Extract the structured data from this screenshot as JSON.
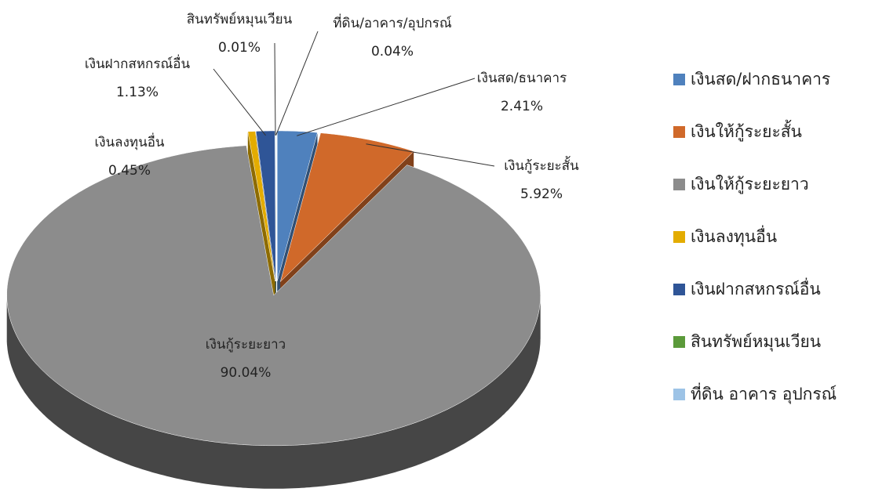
{
  "chart_data": {
    "type": "pie3d",
    "categories": [
      "เงินสด/ธนาคาร",
      "เงินกู้ระยะสั้น",
      "เงินกู้ระยะยาว",
      "เงินลงทุนอื่น",
      "เงินฝากสหกรณ์อื่น",
      "สินทรัพย์หมุนเวียน",
      "ที่ดิน/อาคาร/อุปกรณ์"
    ],
    "values": [
      2.41,
      5.92,
      90.04,
      0.45,
      1.13,
      0.01,
      0.04
    ],
    "value_labels": [
      "2.41%",
      "5.92%",
      "90.04%",
      "0.45%",
      "1.13%",
      "0.01%",
      "0.04%"
    ],
    "colors": [
      "#4f81bd",
      "#d0692a",
      "#8c8c8c",
      "#e3ac00",
      "#2f5597",
      "#5b9a3a",
      "#9dc3e6"
    ],
    "legend_labels": [
      "เงินสด/ฝากธนาคาร",
      "เงินให้กู้ระยะสั้น",
      "เงินให้กู้ระยะยาว",
      "เงินลงทุนอื่น",
      "เงินฝากสหกรณ์อื่น",
      "สินทรัพย์หมุนเวียน",
      "ที่ดิน  อาคาร  อุปกรณ์"
    ]
  }
}
